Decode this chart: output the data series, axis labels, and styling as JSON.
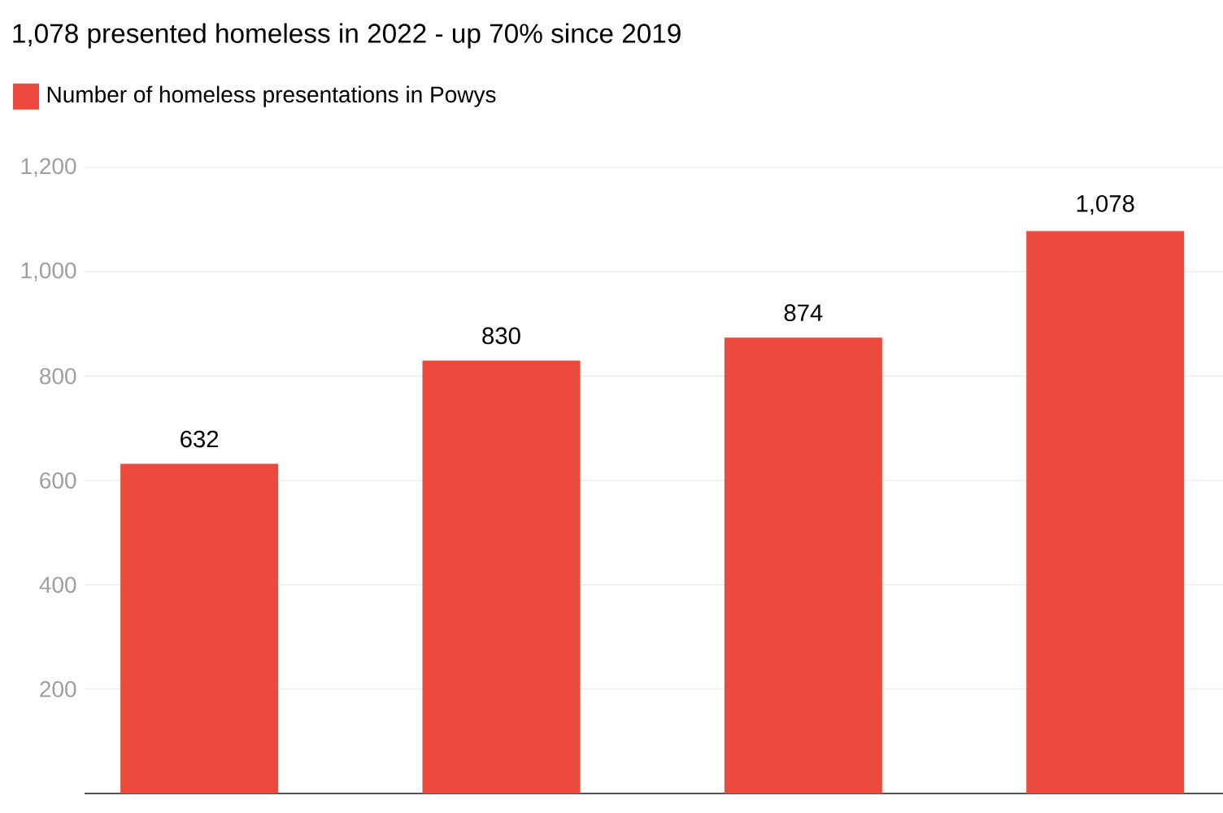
{
  "chart_data": {
    "type": "bar",
    "subtitle": "1,078 presented homeless in 2022 - up 70% since 2019",
    "categories": [
      null,
      null,
      null,
      null
    ],
    "series": [
      {
        "name": "Number of homeless presentations in Powys",
        "color": "#ec4a3c",
        "values": [
          632,
          830,
          874,
          1078
        ],
        "value_labels": [
          "632",
          "830",
          "874",
          "1,078"
        ]
      }
    ],
    "ylim": [
      0,
      1200
    ],
    "yticks": [
      200,
      400,
      600,
      800,
      {
        "value": 1000,
        "label": "1,000"
      },
      {
        "value": 1200,
        "label": "1,200"
      }
    ],
    "grid": "y",
    "legend": "top left",
    "tick_labels": "y"
  }
}
